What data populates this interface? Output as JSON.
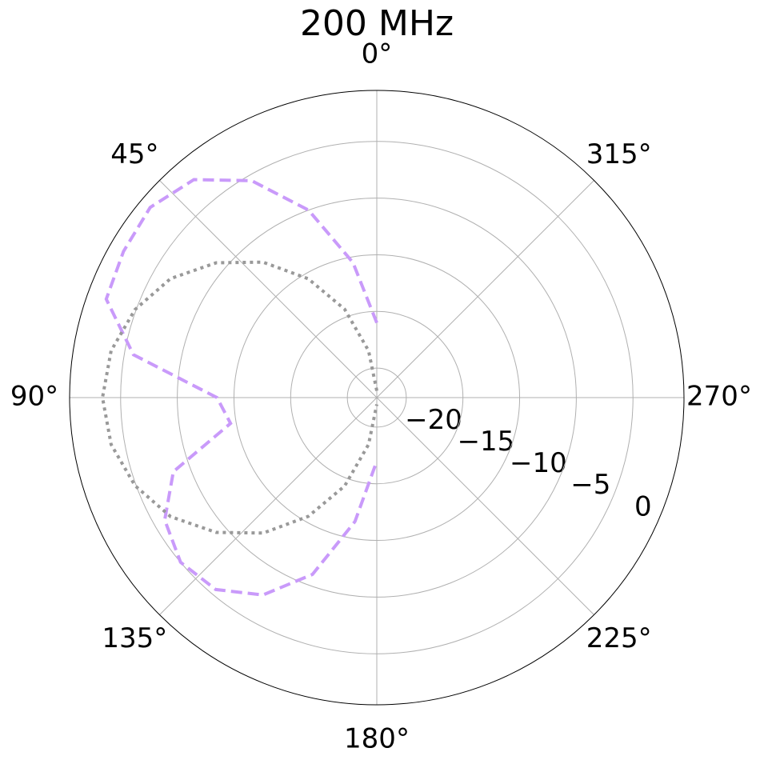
{
  "chart_data": {
    "type": "polar",
    "title": "200 MHz",
    "theta_zero": "top",
    "theta_direction": "counterclockwise",
    "grid": true,
    "rlim": [
      -22.6,
      4.5
    ],
    "rticks": [
      {
        "value": -20,
        "label": "−20"
      },
      {
        "value": -15,
        "label": "−15"
      },
      {
        "value": -10,
        "label": "−10"
      },
      {
        "value": -5,
        "label": "−5"
      },
      0
    ],
    "thetaticks": [
      {
        "value": 0,
        "label": "0°"
      },
      {
        "value": 45,
        "label": "45°"
      },
      {
        "value": 90,
        "label": "90°"
      },
      {
        "value": 135,
        "label": "135°"
      },
      {
        "value": 180,
        "label": "180°"
      },
      {
        "value": 225,
        "label": "225°"
      },
      {
        "value": 270,
        "label": "270°"
      },
      {
        "value": 315,
        "label": "315°"
      }
    ],
    "theta": [
      0,
      10,
      20,
      30,
      40,
      50,
      60,
      70,
      80,
      90,
      100,
      110,
      120,
      130,
      140,
      150,
      160,
      170,
      180
    ],
    "series": [
      {
        "color": "#c99afa",
        "style": "dashed",
        "values": [
          -16,
          -10.5,
          -5,
          -0.5,
          2.5,
          3.5,
          3.2,
          2.8,
          -0.8,
          -8.5,
          -9.5,
          -3.5,
          -1,
          0,
          -0.5,
          -2.5,
          -6,
          -11.5,
          -17
        ]
      },
      {
        "color": "#999999",
        "style": "dotted",
        "values": [
          -22,
          -18.4,
          -14.3,
          -10.5,
          -7.0,
          -4.1,
          -1.6,
          0.1,
          1.2,
          1.6,
          1.2,
          0.1,
          -1.6,
          -4.1,
          -7.0,
          -10.5,
          -14.3,
          -18.4,
          -22
        ]
      }
    ]
  }
}
